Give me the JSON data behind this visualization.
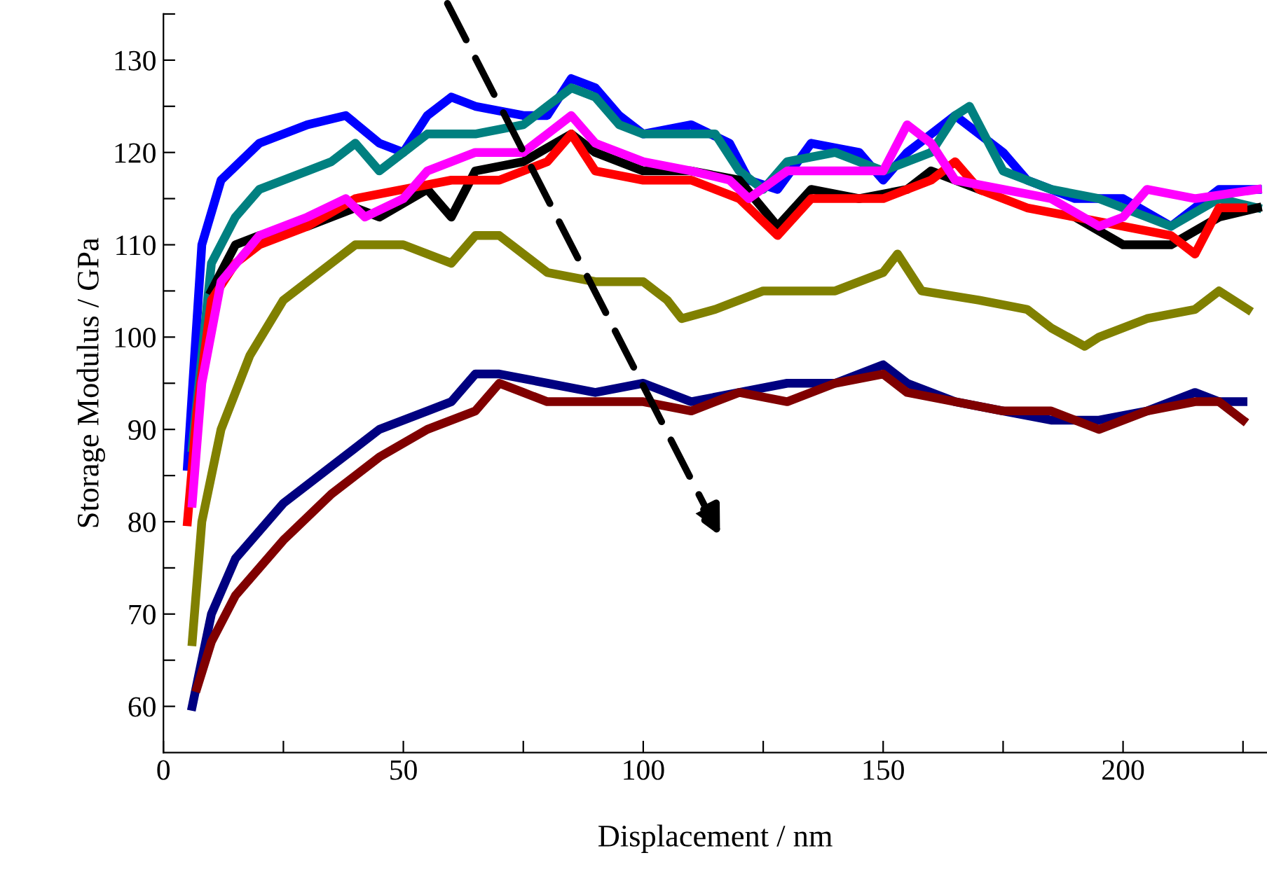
{
  "chart_data": {
    "type": "line",
    "xlabel": "Displacement / nm",
    "ylabel": "Storage Modulus / GPa",
    "xlim": [
      0,
      230
    ],
    "ylim": [
      55,
      135
    ],
    "xticks": [
      0,
      {
        "value": 25,
        "label": null
      },
      50,
      {
        "value": 75,
        "label": null
      },
      100,
      {
        "value": 125,
        "label": null
      },
      150,
      {
        "value": 175,
        "label": null
      },
      200,
      {
        "value": 225,
        "label": null
      }
    ],
    "yticks": [
      60,
      {
        "value": 65,
        "label": null
      },
      70,
      {
        "value": 75,
        "label": null
      },
      80,
      {
        "value": 85,
        "label": null
      },
      90,
      {
        "value": 95,
        "label": null
      },
      100,
      {
        "value": 105,
        "label": null
      },
      110,
      {
        "value": 115,
        "label": null
      },
      120,
      {
        "value": 125,
        "label": null
      },
      130,
      {
        "value": 135,
        "label": null
      }
    ],
    "grid": false,
    "legend": false,
    "line_style": "solid",
    "series": [
      {
        "color": "#0000ff",
        "x": [
          5,
          8,
          12,
          20,
          30,
          38,
          45,
          50,
          55,
          60,
          65,
          75,
          80,
          85,
          90,
          95,
          100,
          110,
          118,
          122,
          128,
          135,
          145,
          150,
          155,
          160,
          165,
          170,
          175,
          180,
          190,
          200,
          210,
          215,
          220,
          228
        ],
        "values": [
          86,
          110,
          117,
          121,
          123,
          124,
          121,
          120,
          124,
          126,
          125,
          124,
          124,
          128,
          127,
          124,
          122,
          123,
          121,
          117,
          116,
          121,
          120,
          117,
          120,
          122,
          124,
          122,
          120,
          117,
          115,
          115,
          112,
          114,
          116,
          116
        ]
      },
      {
        "color": "#008080",
        "x": [
          6,
          10,
          15,
          20,
          30,
          35,
          40,
          45,
          50,
          55,
          65,
          75,
          80,
          85,
          90,
          95,
          100,
          115,
          120,
          125,
          130,
          140,
          150,
          160,
          165,
          168,
          175,
          185,
          195,
          205,
          210,
          220,
          228
        ],
        "values": [
          88,
          108,
          113,
          116,
          118,
          119,
          121,
          118,
          120,
          122,
          122,
          123,
          125,
          127,
          126,
          123,
          122,
          122,
          118,
          116,
          119,
          120,
          118,
          120,
          124,
          125,
          118,
          116,
          115,
          113,
          112,
          115,
          114
        ]
      },
      {
        "color": "#000000",
        "x": [
          10,
          15,
          20,
          30,
          40,
          45,
          55,
          60,
          65,
          75,
          85,
          90,
          100,
          110,
          120,
          128,
          135,
          145,
          155,
          160,
          170,
          180,
          190,
          200,
          210,
          220,
          228
        ],
        "values": [
          105,
          110,
          111,
          112,
          114,
          113,
          116,
          113,
          118,
          119,
          122,
          120,
          118,
          118,
          117,
          112,
          116,
          115,
          116,
          118,
          116,
          null,
          113,
          110,
          110,
          113,
          114
        ]
      },
      {
        "color": "#ff0000",
        "x": [
          5,
          7,
          10,
          15,
          20,
          30,
          40,
          50,
          60,
          70,
          80,
          85,
          90,
          100,
          110,
          120,
          128,
          135,
          145,
          150,
          160,
          165,
          170,
          180,
          190,
          200,
          210,
          215,
          220,
          225
        ],
        "values": [
          80,
          92,
          104,
          108,
          110,
          112,
          115,
          116,
          117,
          117,
          119,
          122,
          118,
          117,
          117,
          115,
          111,
          115,
          115,
          115,
          117,
          119,
          116,
          114,
          113,
          112,
          111,
          109,
          114,
          114
        ]
      },
      {
        "color": "#ff00ff",
        "x": [
          6,
          8,
          12,
          20,
          30,
          38,
          42,
          50,
          55,
          65,
          75,
          80,
          85,
          90,
          100,
          110,
          118,
          122,
          130,
          140,
          150,
          155,
          160,
          165,
          175,
          185,
          195,
          200,
          205,
          215,
          228
        ],
        "values": [
          82,
          95,
          106,
          111,
          113,
          115,
          113,
          115,
          118,
          120,
          120,
          122,
          124,
          121,
          119,
          118,
          117,
          115,
          118,
          118,
          118,
          123,
          121,
          117,
          116,
          115,
          112,
          113,
          116,
          115,
          116
        ]
      },
      {
        "color": "#808000",
        "x": [
          6,
          8,
          12,
          18,
          25,
          35,
          40,
          50,
          60,
          65,
          70,
          80,
          90,
          100,
          105,
          108,
          115,
          125,
          140,
          150,
          153,
          158,
          170,
          180,
          185,
          192,
          195,
          205,
          215,
          220,
          226
        ],
        "values": [
          67,
          80,
          90,
          98,
          104,
          108,
          110,
          110,
          108,
          111,
          111,
          107,
          106,
          106,
          104,
          102,
          103,
          105,
          105,
          107,
          109,
          105,
          104,
          103,
          101,
          99,
          100,
          102,
          103,
          105,
          103
        ]
      },
      {
        "color": "#000080",
        "x": [
          6,
          10,
          15,
          25,
          35,
          45,
          55,
          60,
          65,
          70,
          80,
          90,
          100,
          110,
          120,
          130,
          140,
          150,
          155,
          165,
          175,
          185,
          195,
          205,
          215,
          220,
          225
        ],
        "values": [
          60,
          70,
          76,
          82,
          86,
          90,
          92,
          93,
          96,
          96,
          95,
          94,
          95,
          93,
          94,
          95,
          95,
          97,
          95,
          93,
          92,
          91,
          91,
          92,
          94,
          93,
          93
        ]
      },
      {
        "color": "#800000",
        "x": [
          7,
          10,
          15,
          25,
          35,
          45,
          55,
          65,
          70,
          75,
          80,
          90,
          100,
          110,
          120,
          130,
          140,
          150,
          155,
          165,
          175,
          185,
          195,
          205,
          215,
          220,
          225
        ],
        "values": [
          62,
          67,
          72,
          78,
          83,
          87,
          90,
          92,
          95,
          94,
          93,
          93,
          93,
          92,
          94,
          93,
          95,
          96,
          94,
          93,
          92,
          92,
          90,
          92,
          93,
          93,
          91
        ]
      }
    ]
  }
}
